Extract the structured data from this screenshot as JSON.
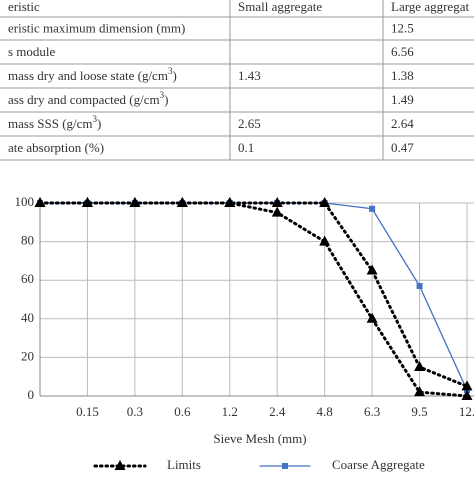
{
  "table": {
    "header": [
      "eristic",
      "Small aggregate",
      "Large aggregat"
    ],
    "rows": [
      [
        [
          "eristic maximum dimension (mm)"
        ],
        [],
        [
          "12.5"
        ]
      ],
      [
        [
          "s module"
        ],
        [],
        [
          "6.56"
        ]
      ],
      [
        [
          "mass dry and loose state (g/cm",
          "3",
          ")"
        ],
        [
          "1.43"
        ],
        [
          "1.38"
        ]
      ],
      [
        [
          "ass dry and compacted (g/cm",
          "3",
          ")"
        ],
        [],
        [
          "1.49"
        ]
      ],
      [
        [
          " mass SSS (g/cm",
          "3",
          ")"
        ],
        [
          "2.65"
        ],
        [
          "2.64"
        ]
      ],
      [
        [
          "ate absorption (%)"
        ],
        [
          "0.1"
        ],
        [
          "0.47"
        ]
      ]
    ]
  },
  "chart_data": {
    "type": "line",
    "x_label": "Sieve Mesh (mm)",
    "categories": [
      null,
      "0.15",
      "0.3",
      "0.6",
      "1.2",
      "2.4",
      "4.8",
      "6.3",
      "9.5",
      "12."
    ],
    "series": [
      {
        "name": "Limits",
        "color": "#000000",
        "style": "dotted",
        "marker": "triangle",
        "values": [
          100,
          100,
          100,
          100,
          100,
          100,
          100,
          65,
          15,
          5
        ]
      },
      {
        "color": "#000000",
        "style": "dotted",
        "marker": "triangle",
        "values": [
          100,
          100,
          100,
          100,
          100,
          95,
          80,
          40,
          2,
          0
        ]
      },
      {
        "name": "Coarse Aggregate",
        "color": "#4472c4",
        "style": "solid",
        "marker": "square",
        "values": [
          100,
          100,
          100,
          100,
          100,
          100,
          100,
          97,
          57,
          3
        ]
      }
    ],
    "ylim": [
      0,
      100
    ],
    "yticks": [
      0,
      20,
      40,
      60,
      80,
      100
    ],
    "grid": true
  }
}
